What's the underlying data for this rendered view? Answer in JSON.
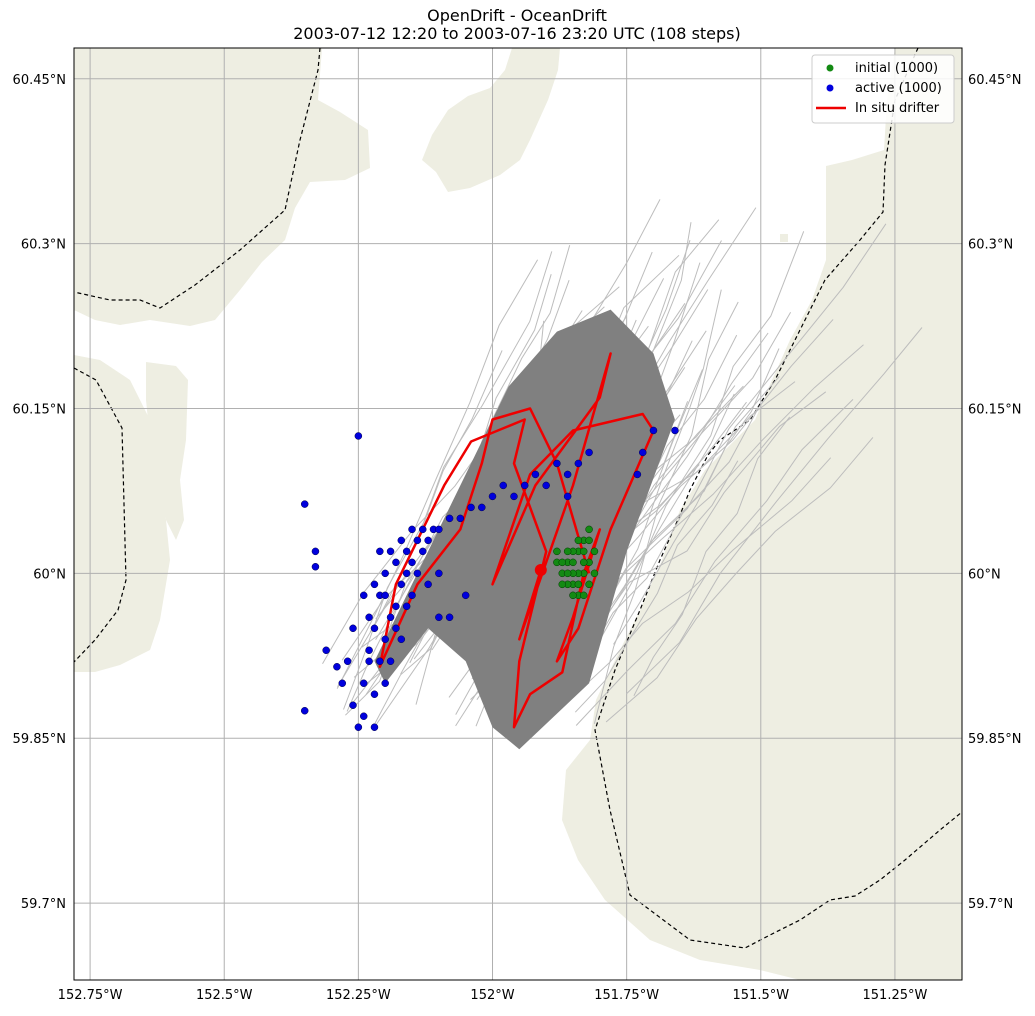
{
  "chart_data": {
    "type": "scatter",
    "title": "OpenDrift - OceanDrift",
    "subtitle": "2003-07-12 12:20 to 2003-07-16 23:20 UTC (108 steps)",
    "xlabel": "",
    "ylabel": "",
    "xlim": [
      -152.78,
      -151.125
    ],
    "ylim": [
      59.63,
      60.478
    ],
    "grid": true,
    "legend_position": "top-right",
    "x_ticks": [
      {
        "value": -152.75,
        "label": "152.75°W"
      },
      {
        "value": -152.5,
        "label": "152.5°W"
      },
      {
        "value": -152.25,
        "label": "152.25°W"
      },
      {
        "value": -152.0,
        "label": "152°W"
      },
      {
        "value": -151.75,
        "label": "151.75°W"
      },
      {
        "value": -151.5,
        "label": "151.5°W"
      },
      {
        "value": -151.25,
        "label": "151.25°W"
      }
    ],
    "y_ticks": [
      {
        "value": 60.45,
        "label": "60.45°N"
      },
      {
        "value": 60.3,
        "label": "60.3°N"
      },
      {
        "value": 60.15,
        "label": "60.15°N"
      },
      {
        "value": 60.0,
        "label": "60°N"
      },
      {
        "value": 59.85,
        "label": "59.85°N"
      },
      {
        "value": 59.7,
        "label": "59.7°N"
      }
    ],
    "legend": [
      {
        "label": "initial (1000)",
        "color": "#006400",
        "marker": "dot"
      },
      {
        "label": "active (1000)",
        "color": "#0000dd",
        "marker": "dot"
      },
      {
        "label": "In situ drifter",
        "color": "#ee0000",
        "marker": "line"
      }
    ],
    "colors": {
      "land": "#eeeee2",
      "trajectory": "#808080",
      "trajectory_light": "#bdbdbd",
      "initial": "#138a13",
      "active": "#0000dd",
      "drifter": "#ee0000",
      "grid": "#b0b0b0"
    },
    "series": [
      {
        "name": "initial (1000)",
        "points": [
          [
            -151.86,
            60.01
          ],
          [
            -151.84,
            60.02
          ],
          [
            -151.83,
            60.0
          ],
          [
            -151.85,
            59.99
          ],
          [
            -151.87,
            60.0
          ],
          [
            -151.82,
            60.01
          ],
          [
            -151.84,
            59.98
          ],
          [
            -151.86,
            59.99
          ],
          [
            -151.83,
            60.03
          ],
          [
            -151.82,
            59.99
          ],
          [
            -151.85,
            60.02
          ],
          [
            -151.88,
            60.01
          ],
          [
            -151.81,
            60.02
          ],
          [
            -151.84,
            60.0
          ],
          [
            -151.86,
            60.02
          ],
          [
            -151.83,
            59.98
          ],
          [
            -151.85,
            60.0
          ],
          [
            -151.82,
            60.03
          ],
          [
            -151.87,
            59.99
          ],
          [
            -151.84,
            60.03
          ],
          [
            -151.81,
            60.0
          ],
          [
            -151.86,
            60.0
          ],
          [
            -151.83,
            60.01
          ],
          [
            -151.85,
            59.98
          ],
          [
            -151.88,
            60.02
          ],
          [
            -151.82,
            60.04
          ],
          [
            -151.84,
            59.99
          ],
          [
            -151.87,
            60.01
          ],
          [
            -151.83,
            60.02
          ],
          [
            -151.85,
            60.01
          ]
        ]
      },
      {
        "name": "active (1000)",
        "points": [
          [
            -152.35,
            60.063
          ],
          [
            -152.33,
            60.02
          ],
          [
            -152.33,
            60.006
          ],
          [
            -152.25,
            60.125
          ],
          [
            -152.35,
            59.875
          ],
          [
            -152.31,
            59.93
          ],
          [
            -152.29,
            59.915
          ],
          [
            -152.28,
            59.9
          ],
          [
            -152.27,
            59.92
          ],
          [
            -152.26,
            59.88
          ],
          [
            -152.25,
            59.86
          ],
          [
            -152.24,
            59.87
          ],
          [
            -152.24,
            59.9
          ],
          [
            -152.23,
            59.93
          ],
          [
            -152.23,
            59.96
          ],
          [
            -152.22,
            59.89
          ],
          [
            -152.22,
            59.95
          ],
          [
            -152.21,
            59.98
          ],
          [
            -152.21,
            59.92
          ],
          [
            -152.2,
            59.94
          ],
          [
            -152.2,
            60.0
          ],
          [
            -152.19,
            59.96
          ],
          [
            -152.19,
            60.02
          ],
          [
            -152.18,
            59.97
          ],
          [
            -152.18,
            60.01
          ],
          [
            -152.17,
            60.03
          ],
          [
            -152.17,
            59.99
          ],
          [
            -152.16,
            60.0
          ],
          [
            -152.16,
            60.02
          ],
          [
            -152.15,
            60.04
          ],
          [
            -152.15,
            60.01
          ],
          [
            -152.14,
            60.03
          ],
          [
            -152.13,
            60.04
          ],
          [
            -152.12,
            60.03
          ],
          [
            -152.11,
            60.04
          ],
          [
            -152.1,
            60.04
          ],
          [
            -152.08,
            60.05
          ],
          [
            -152.06,
            60.05
          ],
          [
            -152.04,
            60.06
          ],
          [
            -152.02,
            60.06
          ],
          [
            -152.0,
            60.07
          ],
          [
            -151.98,
            60.08
          ],
          [
            -151.96,
            60.07
          ],
          [
            -151.94,
            60.08
          ],
          [
            -151.92,
            60.09
          ],
          [
            -151.9,
            60.08
          ],
          [
            -151.88,
            60.1
          ],
          [
            -151.86,
            60.09
          ],
          [
            -151.84,
            60.1
          ],
          [
            -151.82,
            60.11
          ],
          [
            -151.86,
            60.07
          ],
          [
            -151.7,
            60.13
          ],
          [
            -151.66,
            60.13
          ],
          [
            -151.73,
            60.09
          ],
          [
            -151.72,
            60.11
          ],
          [
            -152.22,
            59.99
          ],
          [
            -152.21,
            60.02
          ],
          [
            -152.2,
            59.98
          ],
          [
            -152.19,
            59.92
          ],
          [
            -152.24,
            59.98
          ],
          [
            -152.18,
            59.95
          ],
          [
            -152.15,
            59.98
          ],
          [
            -152.14,
            60.0
          ],
          [
            -152.1,
            59.96
          ],
          [
            -152.08,
            59.96
          ],
          [
            -152.12,
            59.99
          ],
          [
            -152.2,
            59.9
          ],
          [
            -152.17,
            59.94
          ],
          [
            -152.23,
            59.92
          ],
          [
            -152.26,
            59.95
          ],
          [
            -152.22,
            59.86
          ],
          [
            -152.16,
            59.97
          ],
          [
            -152.13,
            60.02
          ],
          [
            -152.1,
            60.0
          ],
          [
            -152.05,
            59.98
          ]
        ]
      },
      {
        "name": "In situ drifter",
        "points": [
          [
            -151.91,
            60.003
          ],
          [
            -151.95,
            59.94
          ],
          [
            -151.85,
            60.08
          ],
          [
            -151.78,
            60.2
          ],
          [
            -151.8,
            60.16
          ],
          [
            -151.92,
            60.08
          ],
          [
            -152.0,
            59.99
          ],
          [
            -151.93,
            60.09
          ],
          [
            -151.85,
            60.13
          ],
          [
            -151.72,
            60.145
          ],
          [
            -151.7,
            60.13
          ],
          [
            -151.78,
            60.04
          ],
          [
            -151.84,
            59.95
          ],
          [
            -151.88,
            59.92
          ],
          [
            -151.85,
            59.96
          ],
          [
            -151.8,
            60.04
          ],
          [
            -151.83,
            60.0
          ],
          [
            -151.87,
            59.91
          ],
          [
            -151.93,
            59.89
          ],
          [
            -151.96,
            59.86
          ],
          [
            -151.95,
            59.92
          ],
          [
            -151.9,
            60.02
          ],
          [
            -151.96,
            60.1
          ],
          [
            -151.94,
            60.14
          ],
          [
            -152.04,
            60.12
          ],
          [
            -152.09,
            60.08
          ],
          [
            -152.18,
            59.99
          ],
          [
            -152.21,
            59.915
          ],
          [
            -152.14,
            59.99
          ],
          [
            -152.06,
            60.04
          ],
          [
            -152.02,
            60.1
          ],
          [
            -152.0,
            60.14
          ],
          [
            -151.93,
            60.15
          ],
          [
            -151.88,
            60.1
          ],
          [
            -151.82,
            60.0
          ]
        ],
        "end_marker": [
          -151.91,
          60.003
        ]
      }
    ]
  }
}
